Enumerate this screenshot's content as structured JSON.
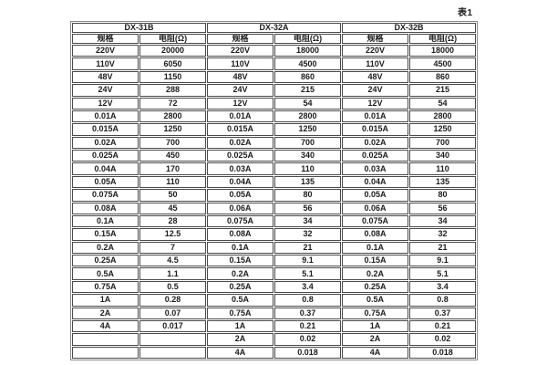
{
  "caption": "表1",
  "table": {
    "groups": [
      {
        "name": "DX-31B",
        "spec_header": "规格",
        "resistance_header": "电阻(Ω)",
        "rows": [
          [
            "220V",
            "20000"
          ],
          [
            "110V",
            "6050"
          ],
          [
            "48V",
            "1150"
          ],
          [
            "24V",
            "288"
          ],
          [
            "12V",
            "72"
          ],
          [
            "0.01A",
            "2800"
          ],
          [
            "0.015A",
            "1250"
          ],
          [
            "0.02A",
            "700"
          ],
          [
            "0.025A",
            "450"
          ],
          [
            "0.04A",
            "170"
          ],
          [
            "0.05A",
            "110"
          ],
          [
            "0.075A",
            "50"
          ],
          [
            "0.08A",
            "45"
          ],
          [
            "0.1A",
            "28"
          ],
          [
            "0.15A",
            "12.5"
          ],
          [
            "0.2A",
            "7"
          ],
          [
            "0.25A",
            "4.5"
          ],
          [
            "0.5A",
            "1.1"
          ],
          [
            "0.75A",
            "0.5"
          ],
          [
            "1A",
            "0.28"
          ],
          [
            "2A",
            "0.07"
          ],
          [
            "4A",
            "0.017"
          ],
          [
            "",
            ""
          ],
          [
            "",
            ""
          ]
        ]
      },
      {
        "name": "DX-32A",
        "spec_header": "规格",
        "resistance_header": "电阻(Ω)",
        "rows": [
          [
            "220V",
            "18000"
          ],
          [
            "110V",
            "4500"
          ],
          [
            "48V",
            "860"
          ],
          [
            "24V",
            "215"
          ],
          [
            "12V",
            "54"
          ],
          [
            "0.01A",
            "2800"
          ],
          [
            "0.015A",
            "1250"
          ],
          [
            "0.02A",
            "700"
          ],
          [
            "0.025A",
            "340"
          ],
          [
            "0.03A",
            "110"
          ],
          [
            "0.04A",
            "135"
          ],
          [
            "0.05A",
            "80"
          ],
          [
            "0.06A",
            "56"
          ],
          [
            "0.075A",
            "34"
          ],
          [
            "0.08A",
            "32"
          ],
          [
            "0.1A",
            "21"
          ],
          [
            "0.15A",
            "9.1"
          ],
          [
            "0.2A",
            "5.1"
          ],
          [
            "0.25A",
            "3.4"
          ],
          [
            "0.5A",
            "0.8"
          ],
          [
            "0.75A",
            "0.37"
          ],
          [
            "1A",
            "0.21"
          ],
          [
            "2A",
            "0.02"
          ],
          [
            "4A",
            "0.018"
          ]
        ]
      },
      {
        "name": "DX-32B",
        "spec_header": "规格",
        "resistance_header": "电阻(Ω)",
        "rows": [
          [
            "220V",
            "18000"
          ],
          [
            "110V",
            "4500"
          ],
          [
            "48V",
            "860"
          ],
          [
            "24V",
            "215"
          ],
          [
            "12V",
            "54"
          ],
          [
            "0.01A",
            "2800"
          ],
          [
            "0.015A",
            "1250"
          ],
          [
            "0.02A",
            "700"
          ],
          [
            "0.025A",
            "340"
          ],
          [
            "0.03A",
            "110"
          ],
          [
            "0.04A",
            "135"
          ],
          [
            "0.05A",
            "80"
          ],
          [
            "0.06A",
            "56"
          ],
          [
            "0.075A",
            "34"
          ],
          [
            "0.08A",
            "32"
          ],
          [
            "0.1A",
            "21"
          ],
          [
            "0.15A",
            "9.1"
          ],
          [
            "0.2A",
            "5.1"
          ],
          [
            "0.25A",
            "3.4"
          ],
          [
            "0.5A",
            "0.8"
          ],
          [
            "0.75A",
            "0.37"
          ],
          [
            "1A",
            "0.21"
          ],
          [
            "2A",
            "0.02"
          ],
          [
            "4A",
            "0.018"
          ]
        ]
      }
    ],
    "colors": {
      "cell_border": "#4a4a4a",
      "outer_border": "#888888",
      "text": "#1c1c1c",
      "background": "#ffffff"
    }
  }
}
